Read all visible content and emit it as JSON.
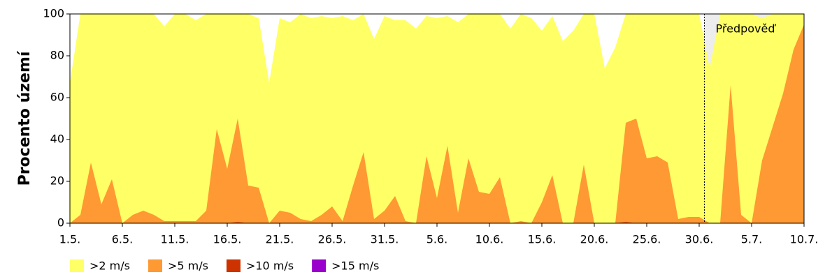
{
  "chart_data": {
    "type": "area",
    "y_label": "Procento území",
    "categories": [
      "1.5.",
      null,
      null,
      null,
      null,
      "6.5.",
      null,
      null,
      null,
      null,
      "11.5.",
      null,
      null,
      null,
      null,
      "16.5.",
      null,
      null,
      null,
      null,
      "21.5.",
      null,
      null,
      null,
      null,
      "26.5.",
      null,
      null,
      null,
      null,
      "31.5.",
      null,
      null,
      null,
      null,
      "5.6.",
      null,
      null,
      null,
      null,
      "10.6.",
      null,
      null,
      null,
      null,
      "15.6.",
      null,
      null,
      null,
      null,
      "20.6.",
      null,
      null,
      null,
      null,
      "25.6.",
      null,
      null,
      null,
      null,
      "30.6.",
      null,
      null,
      null,
      null,
      "5.7.",
      null,
      null,
      null,
      null,
      "10.7."
    ],
    "series": [
      {
        "name": ">2 m/s",
        "color": "#ffff66",
        "values": [
          67,
          100,
          100,
          100,
          100,
          100,
          100,
          100,
          100,
          94,
          100,
          100,
          97,
          100,
          100,
          100,
          100,
          100,
          98,
          67,
          98,
          96,
          100,
          98,
          99,
          98,
          99,
          97,
          100,
          88,
          99,
          97,
          97,
          93,
          99,
          98,
          99,
          96,
          100,
          100,
          100,
          100,
          93,
          100,
          98,
          92,
          99,
          87,
          92,
          100,
          100,
          74,
          84,
          100,
          100,
          100,
          100,
          100,
          100,
          100,
          100,
          74,
          100,
          100,
          100,
          100,
          98,
          100,
          100,
          100,
          100
        ]
      },
      {
        "name": ">5 m/s",
        "color": "#ff9933",
        "values": [
          0,
          4,
          29,
          9,
          21,
          0,
          4,
          6,
          4,
          1,
          1,
          1,
          1,
          6,
          45,
          26,
          50,
          18,
          17,
          0,
          6,
          5,
          2,
          1,
          4,
          8,
          1,
          18,
          34,
          2,
          6,
          13,
          1,
          0,
          32,
          12,
          37,
          5,
          31,
          15,
          14,
          22,
          0,
          1,
          0,
          10,
          23,
          0,
          0,
          28,
          0,
          0,
          0,
          48,
          50,
          31,
          32,
          29,
          2,
          3,
          3,
          0,
          0,
          66,
          4,
          0,
          30,
          46,
          62,
          83,
          95
        ]
      },
      {
        "name": ">10 m/s",
        "color": "#cc3300",
        "values": [
          0,
          0,
          0,
          0,
          0,
          0,
          0,
          0,
          0,
          0,
          0,
          0,
          0,
          0,
          0,
          0,
          0.5,
          0,
          0,
          0,
          0,
          0,
          0,
          0,
          0,
          0,
          0,
          0,
          0,
          0,
          0,
          0,
          0,
          0,
          0,
          0,
          0,
          0,
          0,
          0,
          0,
          0,
          0,
          0,
          0,
          0,
          0,
          0,
          0,
          0,
          0,
          0,
          0,
          0.5,
          0,
          0,
          0,
          0,
          0,
          0,
          0,
          0,
          0,
          0,
          0,
          0,
          0,
          0,
          0,
          0,
          0
        ]
      },
      {
        "name": ">15 m/s",
        "color": "#9900cc",
        "values": [
          0,
          0,
          0,
          0,
          0,
          0,
          0,
          0,
          0,
          0,
          0,
          0,
          0,
          0,
          0,
          0,
          0,
          0,
          0,
          0,
          0,
          0,
          0,
          0,
          0,
          0,
          0,
          0,
          0,
          0,
          0,
          0,
          0,
          0,
          0,
          0,
          0,
          0,
          0,
          0,
          0,
          0,
          0,
          0,
          0,
          0,
          0,
          0,
          0,
          0,
          0,
          0,
          0,
          0,
          0,
          0,
          0,
          0,
          0,
          0,
          0,
          0,
          0,
          0,
          0,
          0,
          0,
          0,
          0,
          0,
          0
        ]
      }
    ],
    "ylim": [
      0,
      100
    ],
    "yticks": [
      0,
      20,
      40,
      60,
      80,
      100
    ],
    "annotations": [
      {
        "text": "Předpověď",
        "at": 60.5
      }
    ]
  }
}
